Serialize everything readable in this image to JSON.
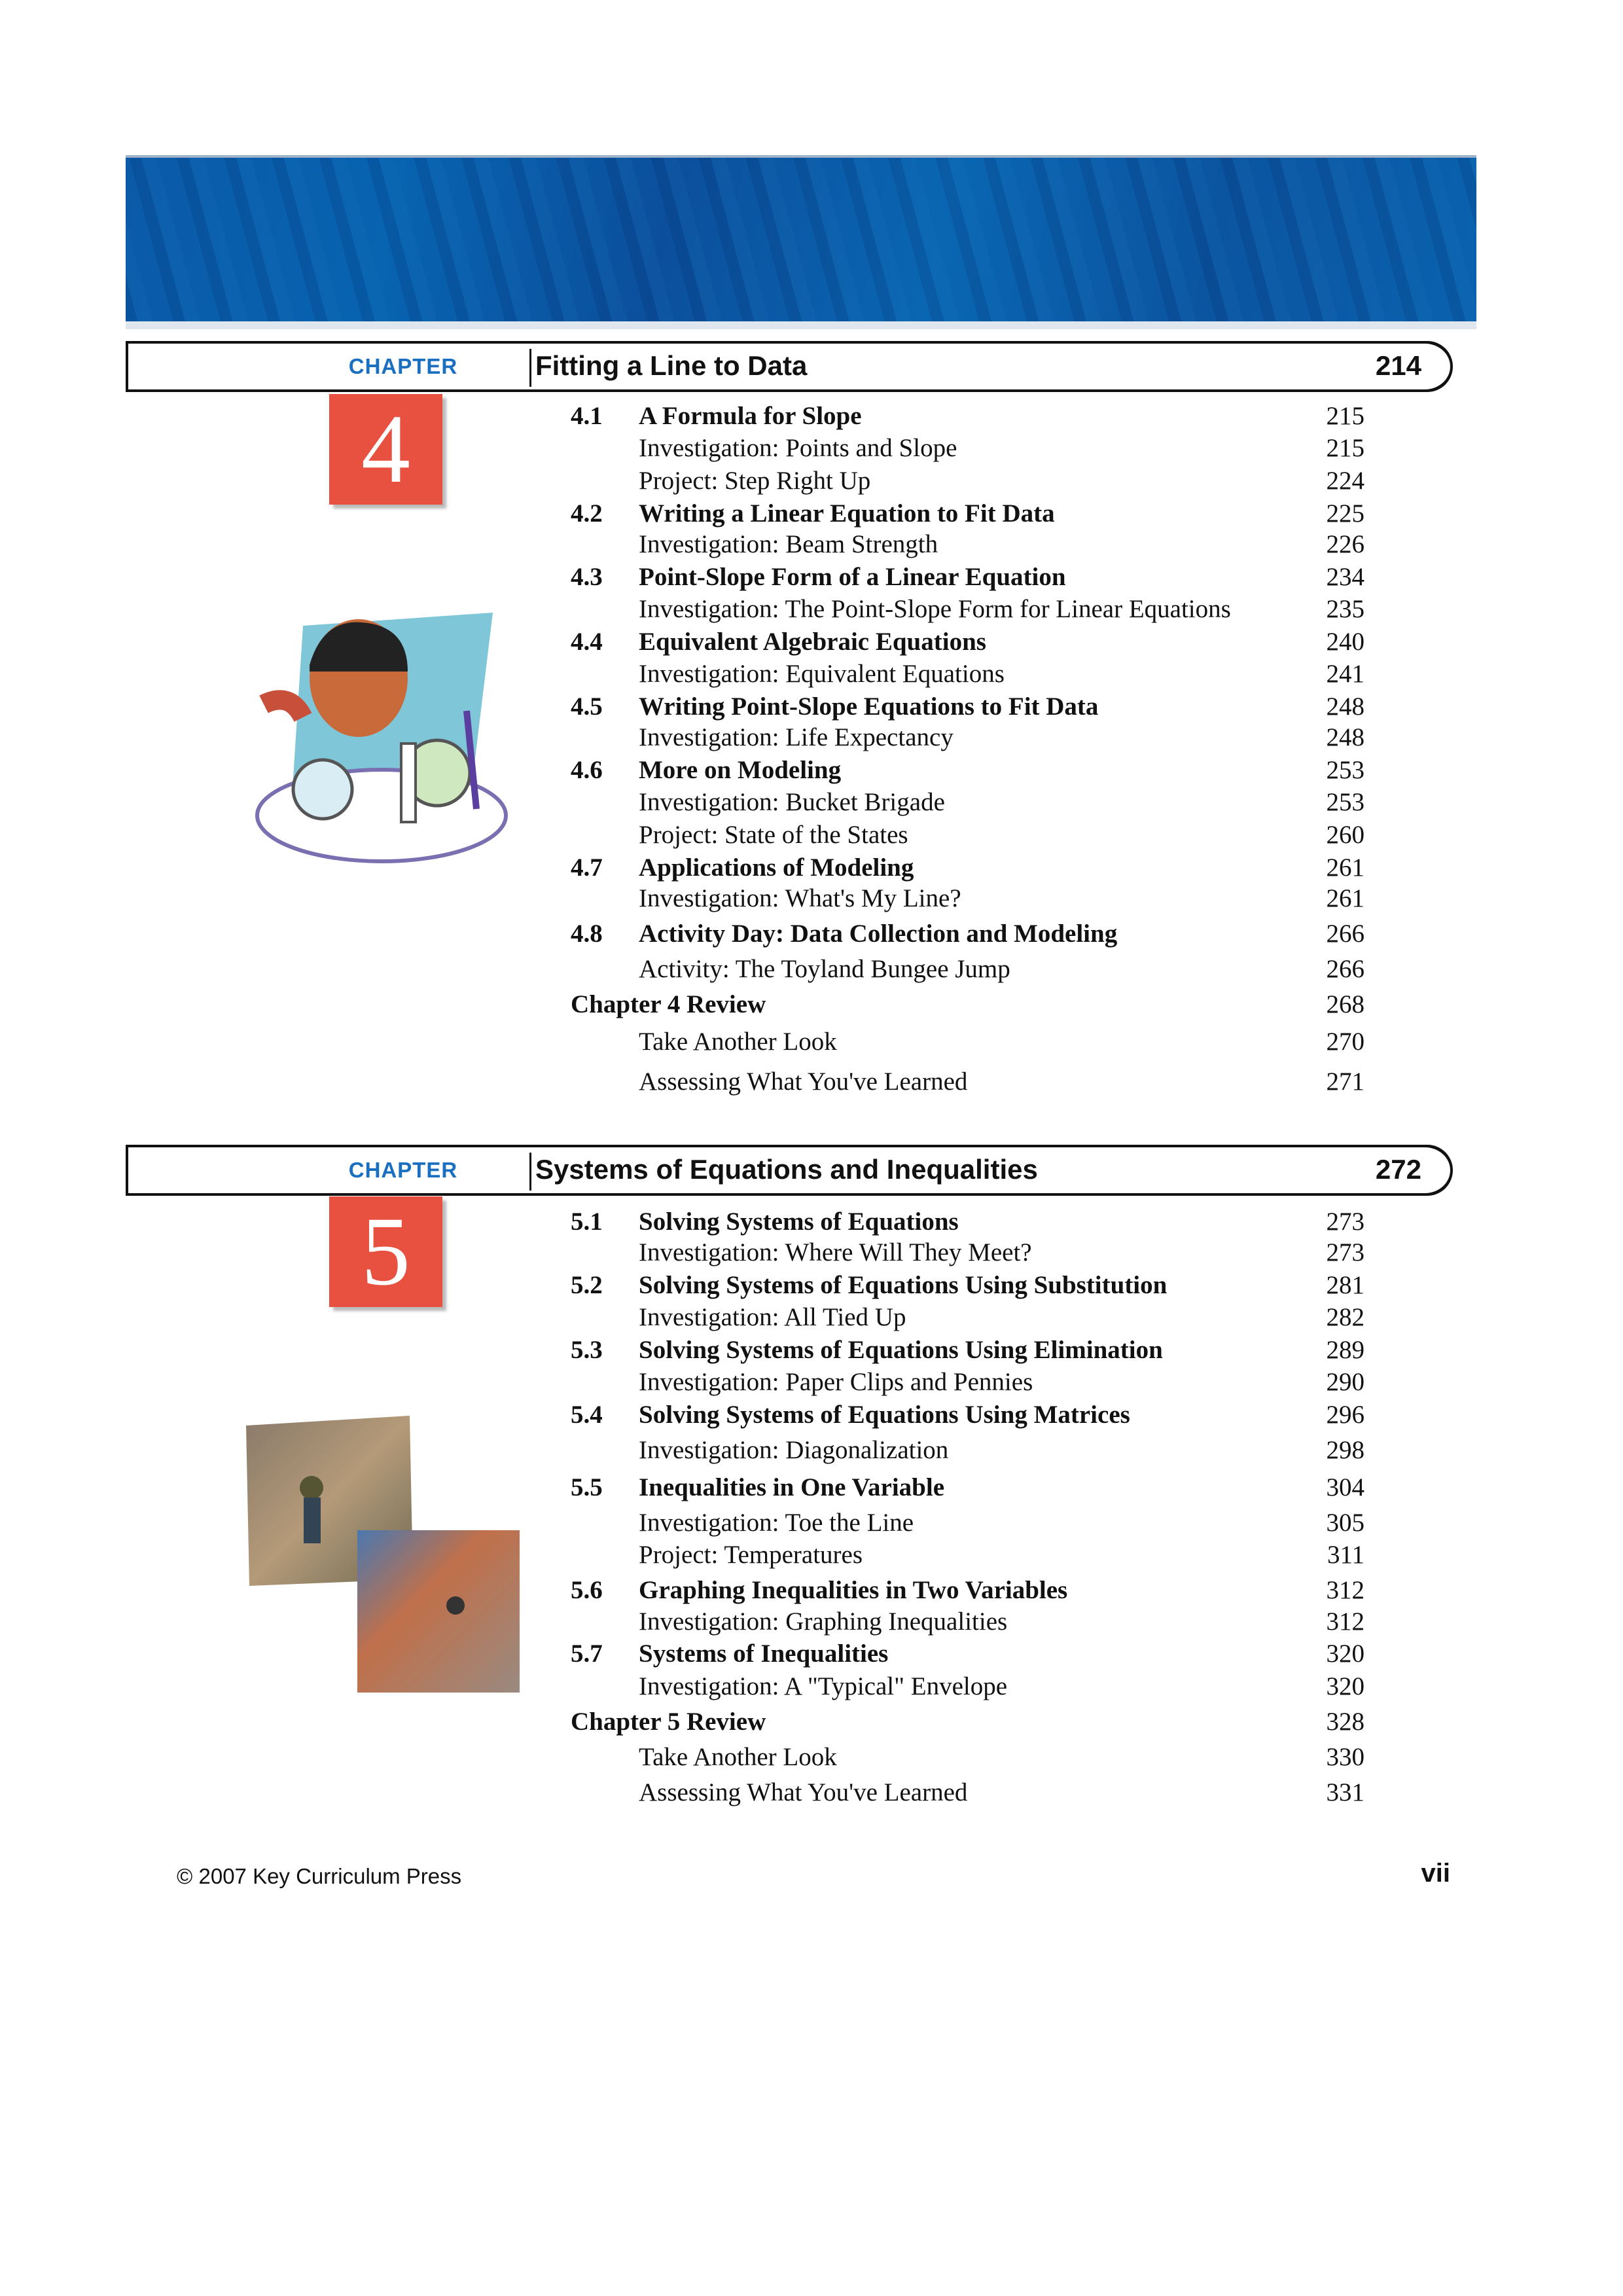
{
  "colors": {
    "banner": "#0a5aa8",
    "chapter_label": "#1a6fc0",
    "chapter_number_box": "#e8503f"
  },
  "chapters": [
    {
      "label": "CHAPTER",
      "number": "4",
      "title": "Fitting a Line to Data",
      "page": "214",
      "entries": [
        {
          "type": "section",
          "num": "4.1",
          "title": "A Formula for Slope",
          "page": "215"
        },
        {
          "type": "sub",
          "title": "Investigation: Points and Slope",
          "page": "215"
        },
        {
          "type": "sub",
          "title": "Project: Step Right Up",
          "page": "224"
        },
        {
          "type": "section",
          "num": "4.2",
          "title": "Writing a Linear Equation to Fit Data",
          "page": "225"
        },
        {
          "type": "sub",
          "title": "Investigation: Beam Strength",
          "page": "226"
        },
        {
          "type": "section",
          "num": "4.3",
          "title": "Point-Slope Form of a Linear Equation",
          "page": "234"
        },
        {
          "type": "sub",
          "title": "Investigation: The Point-Slope Form for Linear Equations",
          "page": "235"
        },
        {
          "type": "section",
          "num": "4.4",
          "title": "Equivalent Algebraic Equations",
          "page": "240"
        },
        {
          "type": "sub",
          "title": "Investigation: Equivalent Equations",
          "page": "241"
        },
        {
          "type": "section",
          "num": "4.5",
          "title": "Writing Point-Slope Equations to Fit Data",
          "page": "248"
        },
        {
          "type": "sub",
          "title": "Investigation: Life Expectancy",
          "page": "248"
        },
        {
          "type": "section",
          "num": "4.6",
          "title": "More on Modeling",
          "page": "253"
        },
        {
          "type": "sub",
          "title": "Investigation: Bucket Brigade",
          "page": "253"
        },
        {
          "type": "sub",
          "title": "Project: State of the States",
          "page": "260"
        },
        {
          "type": "section",
          "num": "4.7",
          "title": "Applications of Modeling",
          "page": "261"
        },
        {
          "type": "sub",
          "title": "Investigation: What's My Line?",
          "page": "261"
        },
        {
          "type": "section",
          "num": "4.8",
          "title": "Activity Day: Data Collection and Modeling",
          "page": "266"
        },
        {
          "type": "sub",
          "title": "Activity: The Toyland Bungee Jump",
          "page": "266"
        },
        {
          "type": "review",
          "title": "Chapter 4 Review",
          "page": "268"
        },
        {
          "type": "sub",
          "title": "Take Another Look",
          "page": "270"
        },
        {
          "type": "sub",
          "title": "Assessing What You've Learned",
          "page": "271"
        }
      ]
    },
    {
      "label": "CHAPTER",
      "number": "5",
      "title": "Systems of Equations and Inequalities",
      "page": "272",
      "entries": [
        {
          "type": "section",
          "num": "5.1",
          "title": "Solving Systems of Equations",
          "page": "273"
        },
        {
          "type": "sub",
          "title": "Investigation: Where Will They Meet?",
          "page": "273"
        },
        {
          "type": "section",
          "num": "5.2",
          "title": "Solving Systems of Equations Using Substitution",
          "page": "281"
        },
        {
          "type": "sub",
          "title": "Investigation: All Tied Up",
          "page": "282"
        },
        {
          "type": "section",
          "num": "5.3",
          "title": "Solving Systems of Equations Using Elimination",
          "page": "289"
        },
        {
          "type": "sub",
          "title": "Investigation: Paper Clips and Pennies",
          "page": "290"
        },
        {
          "type": "section",
          "num": "5.4",
          "title": "Solving Systems of Equations Using Matrices",
          "page": "296"
        },
        {
          "type": "sub",
          "title": "Investigation: Diagonalization",
          "page": "298"
        },
        {
          "type": "section",
          "num": "5.5",
          "title": "Inequalities in One Variable",
          "page": "304"
        },
        {
          "type": "sub",
          "title": "Investigation: Toe the Line",
          "page": "305"
        },
        {
          "type": "sub",
          "title": "Project: Temperatures",
          "page": "311"
        },
        {
          "type": "section",
          "num": "5.6",
          "title": "Graphing Inequalities in Two Variables",
          "page": "312"
        },
        {
          "type": "sub",
          "title": "Investigation: Graphing Inequalities",
          "page": "312"
        },
        {
          "type": "section",
          "num": "5.7",
          "title": "Systems of Inequalities",
          "page": "320"
        },
        {
          "type": "sub",
          "title": "Investigation: A \"Typical\" Envelope",
          "page": "320"
        },
        {
          "type": "review",
          "title": "Chapter 5 Review",
          "page": "328"
        },
        {
          "type": "sub",
          "title": "Take Another Look",
          "page": "330"
        },
        {
          "type": "sub",
          "title": "Assessing What You've Learned",
          "page": "331"
        }
      ]
    }
  ],
  "footer": {
    "copyright": "© 2007 Key Curriculum Press",
    "page_number": "vii"
  }
}
